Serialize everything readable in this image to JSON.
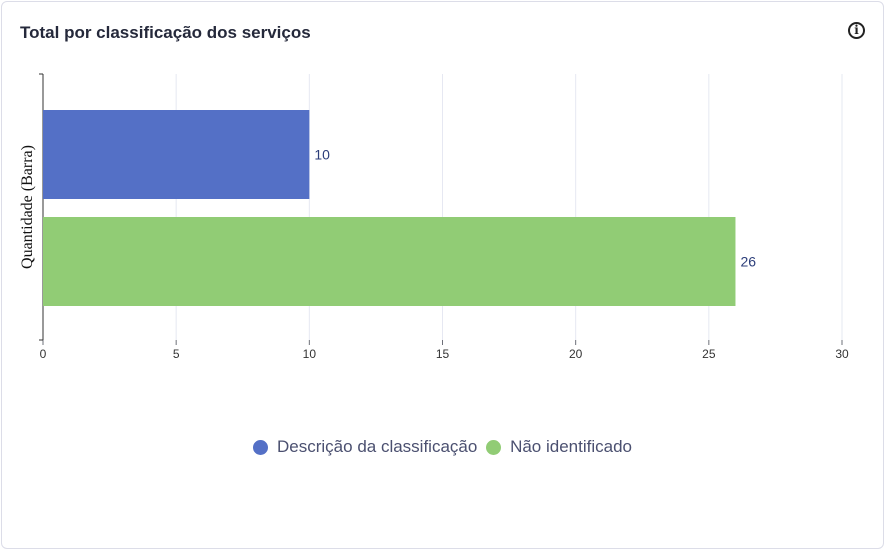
{
  "card": {
    "title": "Total por classificação dos serviços",
    "info_icon": "info-circle-icon"
  },
  "chart_data": {
    "type": "bar",
    "orientation": "horizontal",
    "ylabel": "Quantidade (Barra)",
    "xlim": [
      0,
      30
    ],
    "xticks": [
      0,
      5,
      10,
      15,
      20,
      25,
      30
    ],
    "grid": true,
    "legend_position": "bottom",
    "series": [
      {
        "name": "Descrição da classificação",
        "value": 10,
        "color": "#5470c6"
      },
      {
        "name": "Não identificado",
        "value": 26,
        "color": "#91cc75"
      }
    ]
  }
}
